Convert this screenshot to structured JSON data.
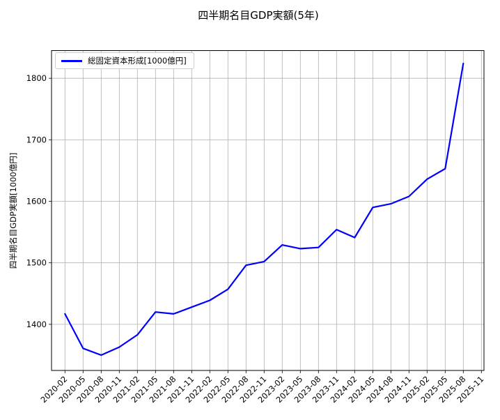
{
  "chart_data": {
    "type": "line",
    "title": "四半期名目GDP実額(5年)",
    "ylabel": "四半期名目GDP実額[1000億円]",
    "xlabel": "",
    "grid": true,
    "legend_position": "upper-left",
    "ylim": [
      1325,
      1845
    ],
    "y_ticks": [
      1400,
      1500,
      1600,
      1700,
      1800
    ],
    "x_tick_labels": [
      "2020-02",
      "2020-05",
      "2020-08",
      "2020-11",
      "2021-02",
      "2021-05",
      "2021-08",
      "2021-11",
      "2022-02",
      "2022-05",
      "2022-08",
      "2022-11",
      "2023-02",
      "2023-05",
      "2023-08",
      "2023-11",
      "2024-02",
      "2024-05",
      "2024-08",
      "2024-11",
      "2025-02",
      "2025-05",
      "2025-08",
      "2025-11"
    ],
    "series": [
      {
        "name": "総固定資本形成[1000億円]",
        "color": "#0000ff",
        "x": [
          "2020-02",
          "2020-05",
          "2020-08",
          "2020-11",
          "2021-02",
          "2021-05",
          "2021-08",
          "2021-11",
          "2022-02",
          "2022-05",
          "2022-08",
          "2022-11",
          "2023-02",
          "2023-05",
          "2023-08",
          "2023-11",
          "2024-02",
          "2024-05",
          "2024-08",
          "2024-11",
          "2025-02",
          "2025-05",
          "2025-08"
        ],
        "values": [
          1417,
          1361,
          1350,
          1363,
          1383,
          1420,
          1417,
          1428,
          1439,
          1457,
          1496,
          1502,
          1529,
          1523,
          1525,
          1554,
          1541,
          1590,
          1596,
          1608,
          1636,
          1653,
          1824
        ]
      }
    ],
    "colors": {
      "line": "#0000ff",
      "grid": "#b0b0b0",
      "axis": "#000000",
      "text": "#000000",
      "legend_border": "#cccccc",
      "background": "#ffffff"
    }
  }
}
